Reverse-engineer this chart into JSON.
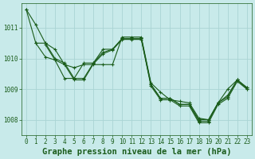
{
  "background_color": "#c8eaea",
  "grid_color": "#aad4d4",
  "line_color": "#1a5c1a",
  "marker_color": "#1a5c1a",
  "xlabel": "Graphe pression niveau de la mer (hPa)",
  "xlabel_fontsize": 7.5,
  "xlabel_color": "#1a5c1a",
  "tick_color": "#1a5c1a",
  "tick_fontsize": 5.5,
  "ylim": [
    1007.5,
    1011.8
  ],
  "xlim": [
    -0.5,
    23.5
  ],
  "yticks": [
    1008,
    1009,
    1010,
    1011
  ],
  "xticks": [
    0,
    1,
    2,
    3,
    4,
    5,
    6,
    7,
    8,
    9,
    10,
    11,
    12,
    13,
    14,
    15,
    16,
    17,
    18,
    19,
    20,
    21,
    22,
    23
  ],
  "series": [
    {
      "x": [
        0,
        1,
        2,
        3,
        4,
        5,
        6,
        7,
        8,
        9,
        10,
        11,
        12,
        13,
        14,
        15,
        16,
        17,
        18,
        19,
        20,
        21,
        22,
        23
      ],
      "y": [
        1011.6,
        1011.1,
        1010.5,
        1010.3,
        1009.8,
        1009.7,
        1009.8,
        1009.8,
        1009.8,
        1009.8,
        1010.7,
        1010.7,
        1010.7,
        1009.2,
        1008.9,
        1008.65,
        1008.6,
        1008.55,
        1008.05,
        1008.0,
        1008.55,
        1009.0,
        1009.3,
        1009.0
      ]
    },
    {
      "x": [
        0,
        1,
        2,
        3,
        4,
        5,
        6,
        7,
        8,
        9,
        10,
        11,
        12,
        13,
        14,
        15,
        16,
        17,
        18,
        19,
        20,
        21,
        22,
        23
      ],
      "y": [
        1011.6,
        1010.5,
        1010.05,
        1009.95,
        1009.35,
        1009.35,
        1009.85,
        1009.85,
        1010.3,
        1010.3,
        1010.65,
        1010.65,
        1010.65,
        1009.15,
        1008.7,
        1008.7,
        1008.5,
        1008.5,
        1008.0,
        1008.0,
        1008.55,
        1008.8,
        1009.3,
        1009.05
      ]
    },
    {
      "x": [
        1,
        2,
        3,
        4,
        5,
        6,
        7,
        8,
        9,
        10,
        11,
        12,
        13,
        14,
        15,
        16,
        17,
        18,
        19,
        20,
        21,
        22,
        23
      ],
      "y": [
        1010.5,
        1010.5,
        1010.0,
        1009.85,
        1009.35,
        1009.35,
        1009.85,
        1010.2,
        1010.3,
        1010.65,
        1010.65,
        1010.65,
        1009.15,
        1008.7,
        1008.7,
        1008.5,
        1008.5,
        1007.95,
        1007.95,
        1008.55,
        1008.75,
        1009.3,
        1009.05
      ]
    },
    {
      "x": [
        2,
        3,
        4,
        5,
        6,
        7,
        8,
        9,
        10,
        11,
        12,
        13,
        14,
        15,
        16,
        17,
        18,
        19,
        20,
        21,
        22,
        23
      ],
      "y": [
        1010.45,
        1009.95,
        1009.8,
        1009.3,
        1009.3,
        1009.82,
        1010.15,
        1010.28,
        1010.62,
        1010.62,
        1010.62,
        1009.1,
        1008.65,
        1008.65,
        1008.45,
        1008.45,
        1007.9,
        1007.9,
        1008.5,
        1008.7,
        1009.25,
        1009.0
      ]
    }
  ]
}
